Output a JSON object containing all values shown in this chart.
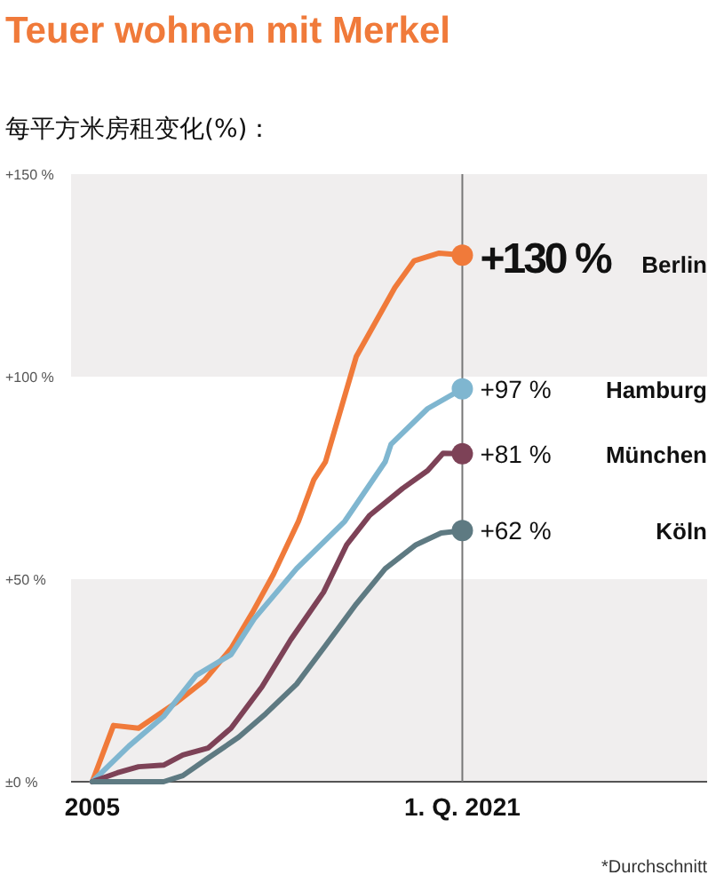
{
  "chart_data": {
    "type": "line",
    "title": "Teuer wohnen mit Merkel",
    "subtitle": "每平方米房租变化(%)：",
    "xlim": [
      "2004-02",
      "2031-08"
    ],
    "xticks": [
      {
        "value": "2005-01",
        "label": "2005"
      },
      {
        "value": "2021-01",
        "label": "1. Q. 2021"
      }
    ],
    "ylim": [
      0,
      150
    ],
    "yticks": [
      {
        "value": 0,
        "label": "±0 %"
      },
      {
        "value": 50,
        "label": "+50 %"
      },
      {
        "value": 100,
        "label": "+100 %"
      },
      {
        "value": 150,
        "label": "+150 %"
      }
    ],
    "bands": [
      {
        "axis": "y",
        "from": 0,
        "to": 50,
        "color": "#f0eeee"
      },
      {
        "axis": "y",
        "from": 100,
        "to": 150,
        "color": "#f0eeee"
      }
    ],
    "ref_lines": [
      {
        "axis": "x",
        "value": "2021-01",
        "color": "#777777"
      }
    ],
    "annotations": [
      "*Durchschnitt"
    ],
    "series": [
      {
        "name": "Berlin",
        "color": "#f07a3a",
        "x": [
          "2005-01",
          "2005-12",
          "2007-01",
          "2007-12",
          "2008-09",
          "2009-11",
          "2011-01",
          "2011-12",
          "2012-11",
          "2013-12",
          "2014-08",
          "2015-02",
          "2016-06",
          "2018-02",
          "2018-12",
          "2020-01",
          "2021-01"
        ],
        "values": [
          0,
          13.9,
          13.2,
          16.8,
          19.7,
          24.9,
          32.9,
          41.7,
          51.2,
          64.3,
          74.6,
          79,
          105,
          122,
          128.6,
          130.5,
          130
        ],
        "value_labels": [
          null,
          null,
          null,
          null,
          null,
          null,
          null,
          null,
          null,
          null,
          null,
          null,
          null,
          null,
          null,
          null,
          "+130 %"
        ]
      },
      {
        "name": "Hamburg",
        "color": "#7fb6d0",
        "x": [
          "2005-01",
          "2006-08",
          "2008-02",
          "2009-07",
          "2011-01",
          "2012-01",
          "2013-11",
          "2015-12",
          "2017-09",
          "2017-12",
          "2019-07",
          "2021-01"
        ],
        "values": [
          0,
          8.8,
          16.1,
          26.3,
          31.4,
          40.2,
          52.6,
          64.3,
          79,
          83.3,
          92.1,
          97
        ],
        "value_labels": [
          null,
          null,
          null,
          null,
          null,
          null,
          null,
          null,
          null,
          null,
          null,
          "+97 %"
        ]
      },
      {
        "name": "München",
        "color": "#7d4257",
        "x": [
          "2005-01",
          "2006-02",
          "2007-01",
          "2008-02",
          "2008-12",
          "2010-01",
          "2011-01",
          "2012-05",
          "2013-08",
          "2015-01",
          "2016-01",
          "2017-01",
          "2018-06",
          "2019-07",
          "2020-03",
          "2021-01"
        ],
        "values": [
          0,
          2.2,
          3.7,
          4.1,
          6.6,
          8.3,
          13.2,
          23.4,
          35.1,
          46.8,
          58.5,
          65.8,
          72.4,
          76.8,
          81.1,
          81
        ],
        "value_labels": [
          null,
          null,
          null,
          null,
          null,
          null,
          null,
          null,
          null,
          null,
          null,
          null,
          null,
          null,
          null,
          "+81 %"
        ]
      },
      {
        "name": "Köln",
        "color": "#5e7a82",
        "x": [
          "2005-01",
          "2005-12",
          "2007-03",
          "2008-02",
          "2008-12",
          "2010-01",
          "2011-05",
          "2012-07",
          "2013-11",
          "2015-02",
          "2016-06",
          "2017-09",
          "2019-01",
          "2020-02",
          "2021-01"
        ],
        "values": [
          0,
          0,
          0,
          0,
          1.5,
          5.8,
          11,
          16.8,
          24.1,
          33.6,
          43.9,
          52.6,
          58.5,
          61.4,
          62
        ],
        "value_labels": [
          null,
          null,
          null,
          null,
          null,
          null,
          null,
          null,
          null,
          null,
          null,
          null,
          null,
          null,
          "+62 %"
        ]
      }
    ]
  }
}
